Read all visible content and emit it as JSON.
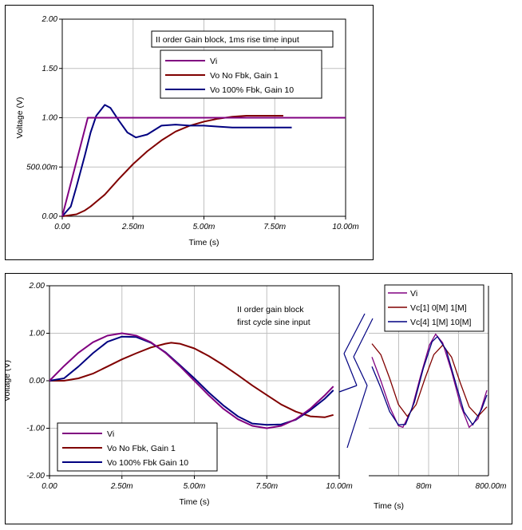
{
  "chart_data": [
    {
      "type": "line",
      "ylabel": "Voltage (V)",
      "xlabel": "Time (s)",
      "xlim": [
        0,
        10
      ],
      "ylim": [
        0,
        2
      ],
      "x_unit": "ms",
      "xticks": [
        0,
        2.5,
        5,
        7.5,
        10
      ],
      "xtick_labels": [
        "0.00",
        "2.50m",
        "5.00m",
        "7.50m",
        "10.00m"
      ],
      "yticks": [
        0,
        0.5,
        1,
        1.5,
        2
      ],
      "ytick_labels": [
        "0.00",
        "500.00m",
        "1.00",
        "1.50",
        "2.00"
      ],
      "grid": true,
      "annotation": "II order Gain block, 1ms rise time input",
      "legend_position": "top-right",
      "series": [
        {
          "name": "Vi",
          "color": "#800080",
          "points": [
            [
              0,
              0
            ],
            [
              0.9,
              1.0
            ],
            [
              10,
              1.0
            ]
          ]
        },
        {
          "name": "Vo  No Fbk, Gain 1",
          "color": "#800000",
          "points": [
            [
              0,
              0
            ],
            [
              0.5,
              0.02
            ],
            [
              0.8,
              0.06
            ],
            [
              1.0,
              0.1
            ],
            [
              1.5,
              0.22
            ],
            [
              2.0,
              0.38
            ],
            [
              2.5,
              0.53
            ],
            [
              3.0,
              0.66
            ],
            [
              3.5,
              0.77
            ],
            [
              4.0,
              0.86
            ],
            [
              4.5,
              0.92
            ],
            [
              5.0,
              0.96
            ],
            [
              5.5,
              0.99
            ],
            [
              6.0,
              1.01
            ],
            [
              6.5,
              1.02
            ],
            [
              7.0,
              1.02
            ],
            [
              7.5,
              1.02
            ],
            [
              7.8,
              1.02
            ]
          ]
        },
        {
          "name": "Vo  100% Fbk, Gain 10",
          "color": "#000080",
          "points": [
            [
              0,
              0
            ],
            [
              0.3,
              0.1
            ],
            [
              0.5,
              0.3
            ],
            [
              0.8,
              0.62
            ],
            [
              1.0,
              0.85
            ],
            [
              1.2,
              1.02
            ],
            [
              1.5,
              1.13
            ],
            [
              1.7,
              1.1
            ],
            [
              2.0,
              0.97
            ],
            [
              2.3,
              0.85
            ],
            [
              2.6,
              0.8
            ],
            [
              3.0,
              0.83
            ],
            [
              3.5,
              0.92
            ],
            [
              4.0,
              0.93
            ],
            [
              4.5,
              0.92
            ],
            [
              5.0,
              0.92
            ],
            [
              5.5,
              0.91
            ],
            [
              6.0,
              0.9
            ],
            [
              6.5,
              0.9
            ],
            [
              7.0,
              0.9
            ],
            [
              7.5,
              0.9
            ],
            [
              8.1,
              0.9
            ]
          ]
        }
      ]
    },
    {
      "type": "line",
      "ylabel": "Voltage (V)",
      "xlabel": "Time (s)",
      "xlim": [
        0,
        10
      ],
      "ylim": [
        -2,
        2
      ],
      "x_unit": "ms",
      "xticks": [
        0,
        2.5,
        5,
        7.5,
        10
      ],
      "xtick_labels": [
        "0.00",
        "2.50m",
        "5.00m",
        "7.50m",
        "10.00m"
      ],
      "yticks": [
        -2,
        -1,
        0,
        1,
        2
      ],
      "ytick_labels": [
        "-2.00",
        "-1.00",
        "0.00",
        "1.00",
        "2.00"
      ],
      "grid": true,
      "annotation": [
        "II order gain block",
        "first cycle sine input"
      ],
      "legend_position": "bottom-left",
      "series": [
        {
          "name": "Vi",
          "color": "#800080",
          "points": [
            [
              0,
              0
            ],
            [
              0.5,
              0.31
            ],
            [
              1.0,
              0.59
            ],
            [
              1.5,
              0.81
            ],
            [
              2.0,
              0.95
            ],
            [
              2.5,
              1.0
            ],
            [
              3.0,
              0.95
            ],
            [
              3.5,
              0.81
            ],
            [
              4.0,
              0.59
            ],
            [
              4.5,
              0.31
            ],
            [
              5.0,
              0.0
            ],
            [
              5.5,
              -0.31
            ],
            [
              6.0,
              -0.59
            ],
            [
              6.5,
              -0.81
            ],
            [
              7.0,
              -0.95
            ],
            [
              7.5,
              -1.0
            ],
            [
              8.0,
              -0.95
            ],
            [
              8.5,
              -0.81
            ],
            [
              9.0,
              -0.59
            ],
            [
              9.5,
              -0.31
            ],
            [
              9.8,
              -0.12
            ]
          ]
        },
        {
          "name": "Vo No Fbk, Gain 1",
          "color": "#800000",
          "points": [
            [
              0,
              0
            ],
            [
              0.5,
              0.0
            ],
            [
              1.0,
              0.05
            ],
            [
              1.5,
              0.15
            ],
            [
              2.0,
              0.3
            ],
            [
              2.5,
              0.45
            ],
            [
              3.0,
              0.58
            ],
            [
              3.5,
              0.7
            ],
            [
              4.0,
              0.78
            ],
            [
              4.2,
              0.8
            ],
            [
              4.5,
              0.78
            ],
            [
              5.0,
              0.68
            ],
            [
              5.5,
              0.52
            ],
            [
              6.0,
              0.33
            ],
            [
              6.5,
              0.12
            ],
            [
              7.0,
              -0.1
            ],
            [
              7.5,
              -0.3
            ],
            [
              8.0,
              -0.5
            ],
            [
              8.5,
              -0.65
            ],
            [
              9.0,
              -0.75
            ],
            [
              9.5,
              -0.77
            ],
            [
              9.8,
              -0.72
            ]
          ]
        },
        {
          "name": "Vo 100% Fbk Gain 10",
          "color": "#000080",
          "points": [
            [
              0,
              0
            ],
            [
              0.5,
              0.05
            ],
            [
              1.0,
              0.3
            ],
            [
              1.5,
              0.58
            ],
            [
              2.0,
              0.82
            ],
            [
              2.5,
              0.93
            ],
            [
              3.0,
              0.92
            ],
            [
              3.5,
              0.8
            ],
            [
              4.0,
              0.6
            ],
            [
              4.5,
              0.33
            ],
            [
              5.0,
              0.05
            ],
            [
              5.5,
              -0.25
            ],
            [
              6.0,
              -0.52
            ],
            [
              6.5,
              -0.75
            ],
            [
              7.0,
              -0.9
            ],
            [
              7.5,
              -0.93
            ],
            [
              8.0,
              -0.92
            ],
            [
              8.5,
              -0.82
            ],
            [
              9.0,
              -0.62
            ],
            [
              9.5,
              -0.38
            ],
            [
              9.8,
              -0.2
            ]
          ]
        }
      ]
    },
    {
      "type": "line",
      "xlabel": "Time (s)",
      "xtick_labels": [
        "8\u00010m",
        "800.00m"
      ],
      "xtick_left": "",
      "grid": true,
      "legend_position": "top",
      "series": [
        {
          "name": "Vi",
          "color": "#800080",
          "points": [
            [
              0,
              0.5
            ],
            [
              0.1,
              0.0
            ],
            [
              0.2,
              -0.55
            ],
            [
              0.3,
              -0.95
            ],
            [
              0.35,
              -0.98
            ],
            [
              0.45,
              -0.6
            ],
            [
              0.55,
              0.1
            ],
            [
              0.65,
              0.75
            ],
            [
              0.72,
              0.98
            ],
            [
              0.8,
              0.8
            ],
            [
              0.9,
              0.2
            ],
            [
              1.0,
              -0.5
            ],
            [
              1.1,
              -0.98
            ],
            [
              1.2,
              -0.8
            ],
            [
              1.3,
              -0.2
            ]
          ]
        },
        {
          "name": "Vc[1] 0[M] 1[M]",
          "color": "#800000",
          "points": [
            [
              0,
              0.78
            ],
            [
              0.1,
              0.55
            ],
            [
              0.2,
              0.05
            ],
            [
              0.3,
              -0.5
            ],
            [
              0.4,
              -0.75
            ],
            [
              0.5,
              -0.5
            ],
            [
              0.6,
              0.05
            ],
            [
              0.7,
              0.55
            ],
            [
              0.8,
              0.75
            ],
            [
              0.9,
              0.5
            ],
            [
              1.0,
              -0.05
            ],
            [
              1.1,
              -0.55
            ],
            [
              1.2,
              -0.75
            ],
            [
              1.3,
              -0.55
            ]
          ]
        },
        {
          "name": "Vc[4] 1[M] 10[M]",
          "color": "#000080",
          "points": [
            [
              0,
              0.3
            ],
            [
              0.1,
              -0.15
            ],
            [
              0.2,
              -0.65
            ],
            [
              0.3,
              -0.93
            ],
            [
              0.38,
              -0.92
            ],
            [
              0.48,
              -0.45
            ],
            [
              0.58,
              0.25
            ],
            [
              0.68,
              0.82
            ],
            [
              0.74,
              0.93
            ],
            [
              0.84,
              0.65
            ],
            [
              0.94,
              0.0
            ],
            [
              1.04,
              -0.65
            ],
            [
              1.14,
              -0.93
            ],
            [
              1.24,
              -0.6
            ],
            [
              1.3,
              -0.3
            ]
          ]
        }
      ]
    }
  ]
}
